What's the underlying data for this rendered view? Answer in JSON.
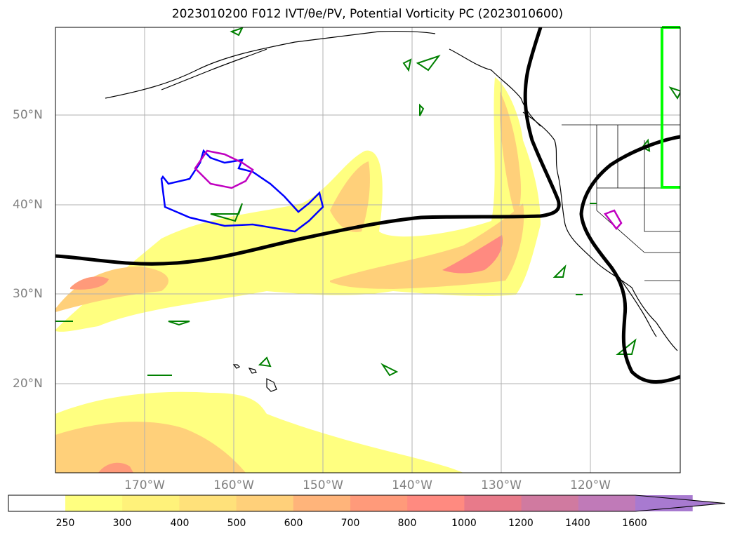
{
  "title": "2023010200 F012 IVT/θe/PV, Potential Vorticity PC (2023010600)",
  "map": {
    "lat_labels": [
      "50°N",
      "40°N",
      "30°N",
      "20°N"
    ],
    "lon_labels": [
      "170°W",
      "160°W",
      "150°W",
      "140°W",
      "130°W",
      "120°W"
    ],
    "grid": true,
    "background": "#ffffff"
  },
  "colorbar": {
    "ticks": [
      "250",
      "300",
      "400",
      "500",
      "600",
      "700",
      "800",
      "1000",
      "1200",
      "1400",
      "1600"
    ],
    "colors": [
      "#ffff80",
      "#fff27a",
      "#ffe17a",
      "#ffd07a",
      "#ffb47a",
      "#ff9a7a",
      "#ff8a80",
      "#e87a8a",
      "#d07aa0",
      "#c07ab8",
      "#a87ad0"
    ],
    "extend": "max"
  },
  "contours": {
    "ivt_fill": "#ffe57a",
    "pv_green": "#008000",
    "blue": "#0000ff",
    "magenta": "#c000c0",
    "black_thick": "#000000",
    "lime_box": "#00ff00"
  }
}
